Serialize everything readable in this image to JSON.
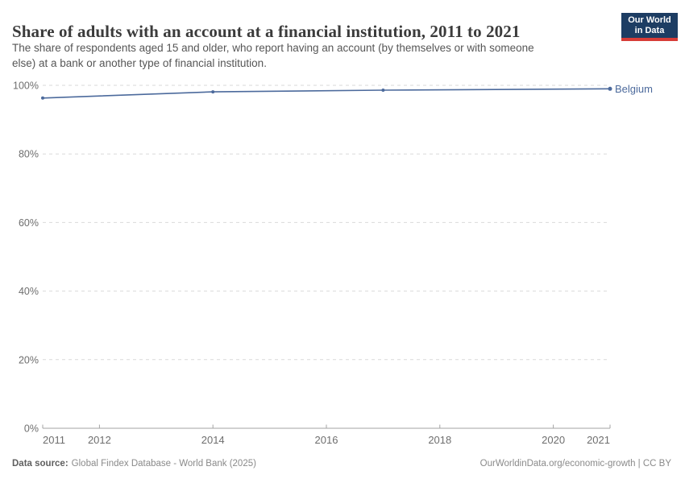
{
  "header": {
    "title": "Share of adults with an account at a financial institution, 2011 to 2021",
    "subtitle_line1": "The share of respondents aged 15 and older, who report having an account (by themselves or with someone",
    "subtitle_line2": "else) at a bank or another type of financial institution.",
    "logo_line1": "Our World",
    "logo_line2": "in Data"
  },
  "chart_data": {
    "type": "line",
    "title": "Share of adults with an account at a financial institution, 2011 to 2021",
    "series": [
      {
        "name": "Belgium",
        "color": "#4C6A9C",
        "x": [
          2011,
          2014,
          2017,
          2021
        ],
        "values": [
          96.3,
          98.1,
          98.6,
          99.0
        ]
      }
    ],
    "xlabel": "",
    "ylabel": "",
    "xlim": [
      2011,
      2021
    ],
    "ylim": [
      0,
      100
    ],
    "x_ticks": [
      2011,
      2012,
      2014,
      2016,
      2018,
      2020,
      2021
    ],
    "y_ticks": [
      0,
      20,
      40,
      60,
      80,
      100
    ],
    "y_tick_suffix": "%",
    "grid": "horizontal dashed",
    "legend_position": "end-of-line label"
  },
  "colors": {
    "line": "#4C6A9C",
    "grid": "#d9d9d9",
    "axis": "#a3a3a3",
    "tick_label": "#6e6e6e",
    "logo_bg": "#1d3d63",
    "logo_stripe": "#d73c37"
  },
  "footer": {
    "datasource_label": "Data source:",
    "datasource_value": "Global Findex Database - World Bank (2025)",
    "attribution": "OurWorldinData.org/economic-growth | CC BY"
  }
}
